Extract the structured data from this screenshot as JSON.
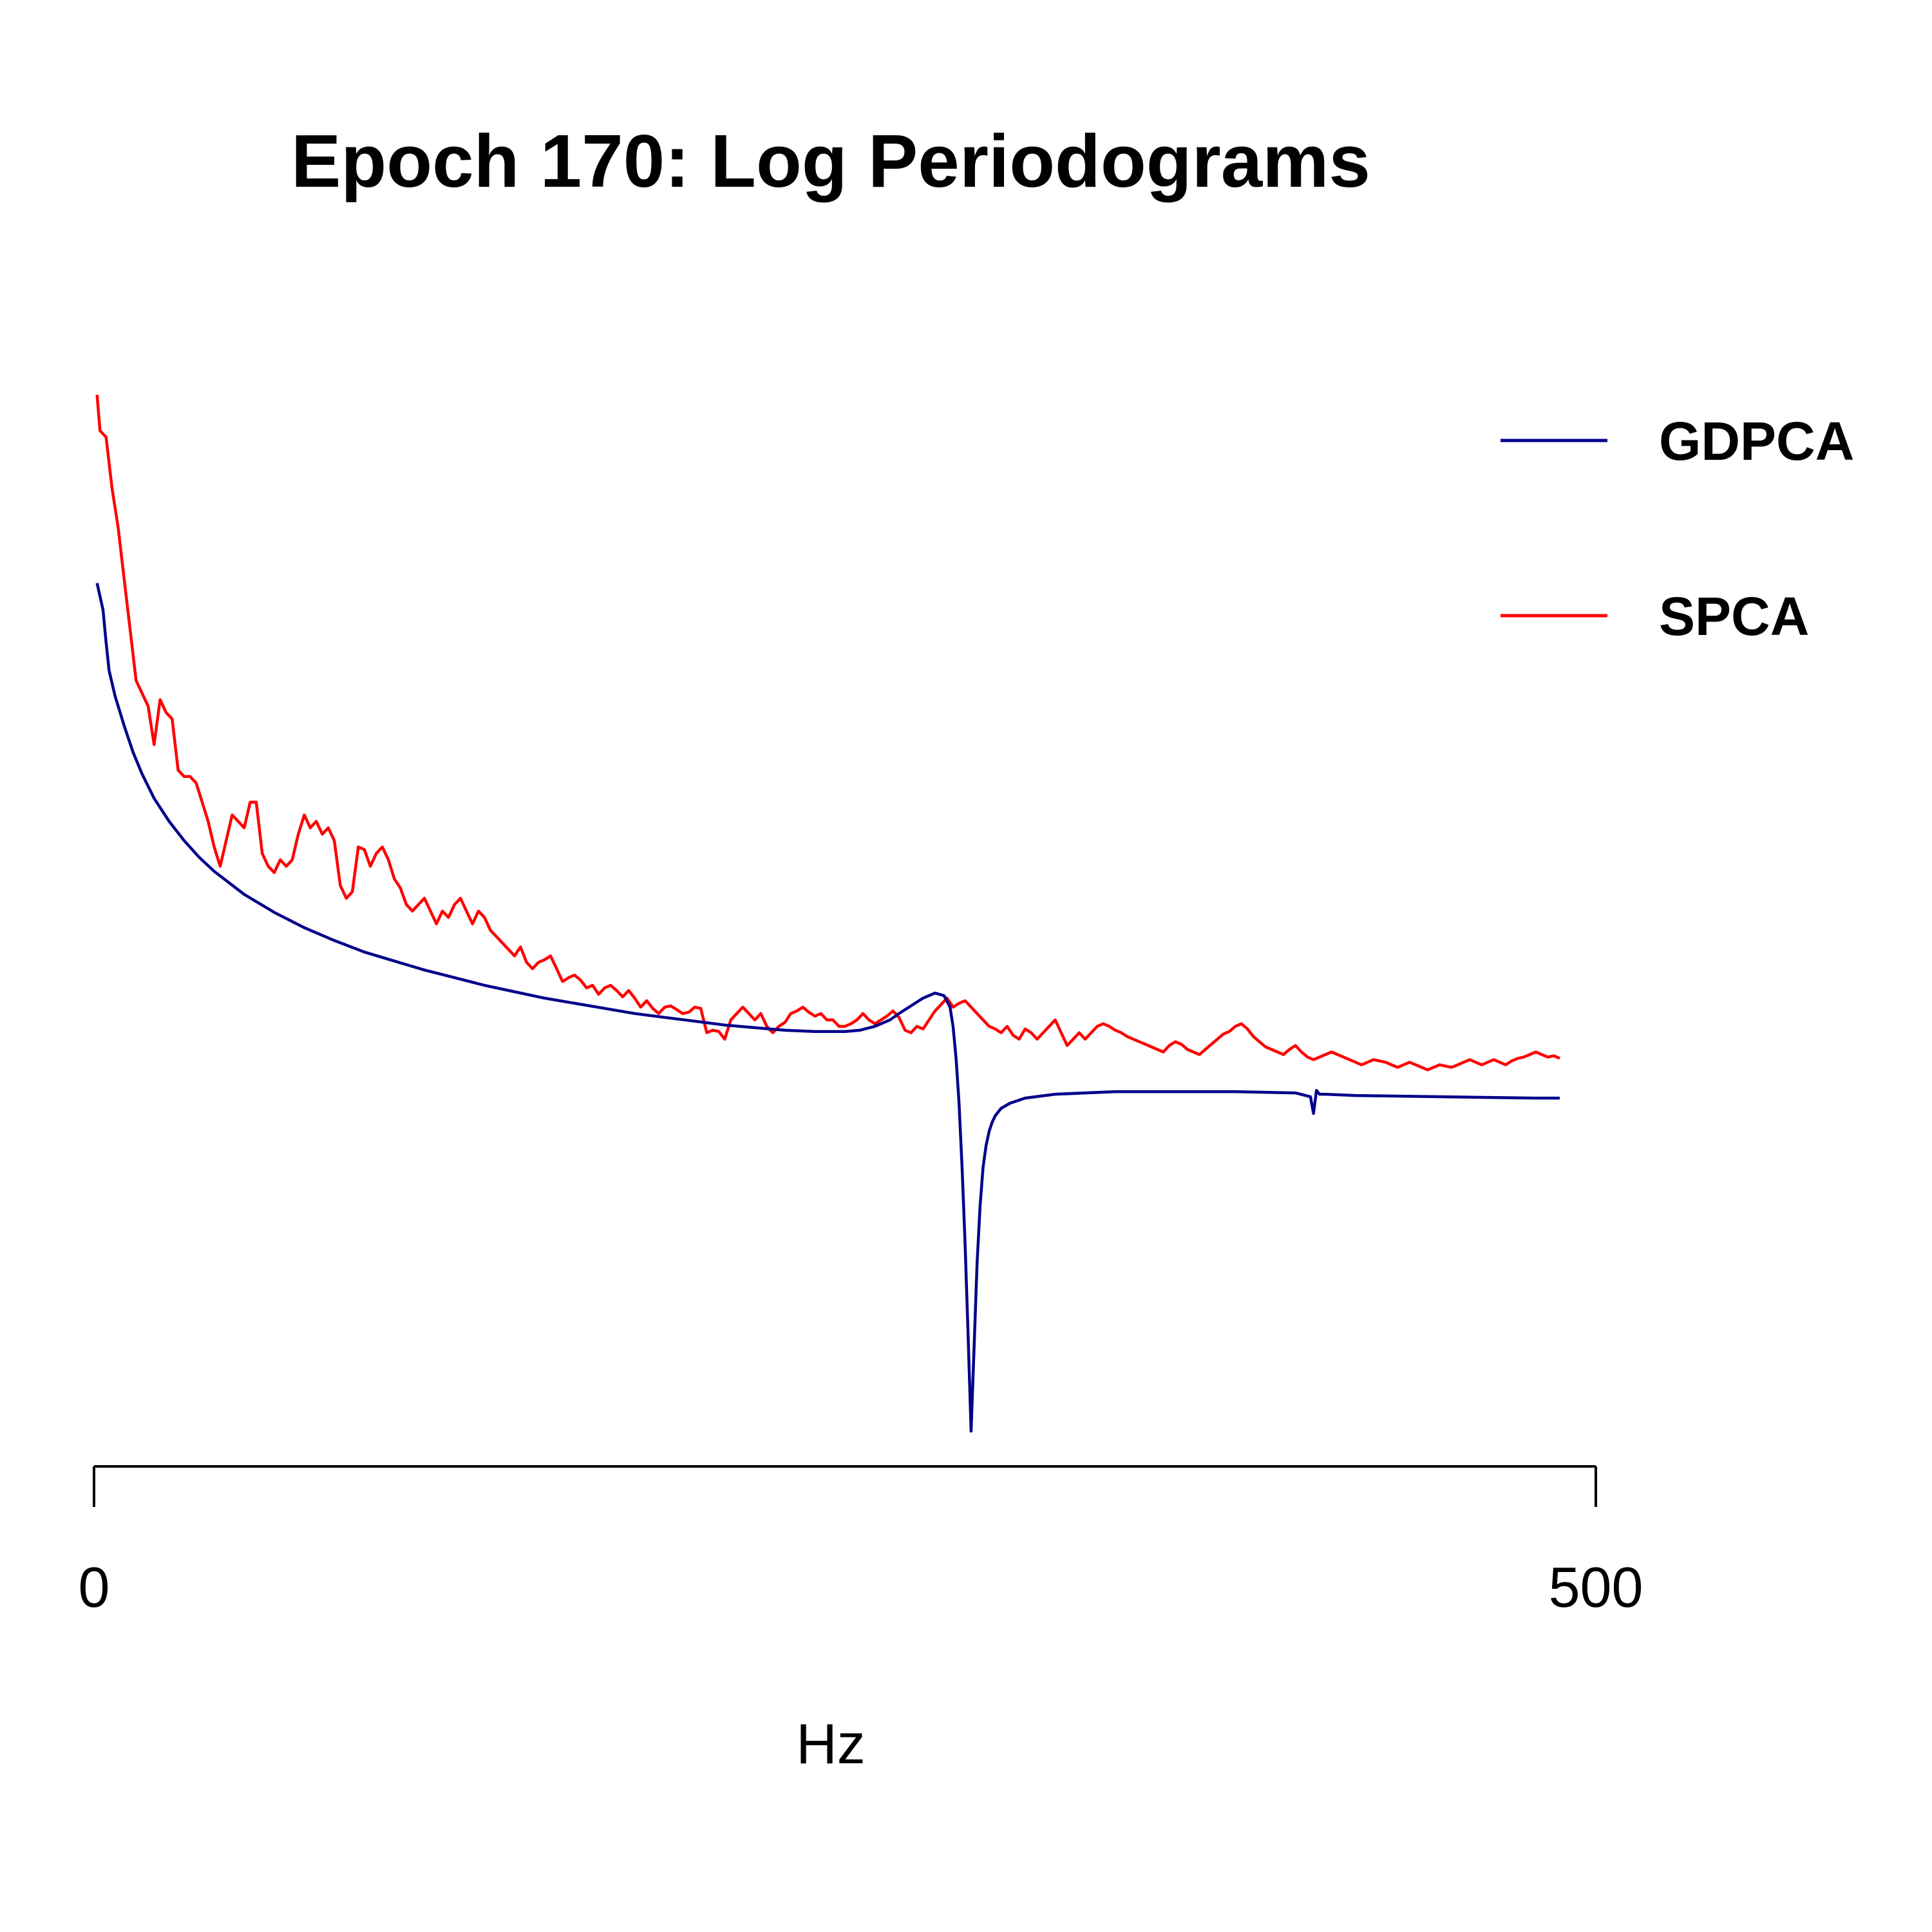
{
  "chart_data": {
    "type": "line",
    "title": "Epoch 170: Log Periodograms",
    "xlabel": "Hz",
    "ylabel": "",
    "xlim": [
      0,
      500
    ],
    "ylim": [
      -8.4,
      0.8
    ],
    "x_ticks": [
      "0",
      "500"
    ],
    "y_axis_shown": false,
    "grid": false,
    "legend_position": "top-right",
    "series": [
      {
        "name": "GDPCA",
        "color": "#00008b",
        "x": [
          1,
          3,
          4,
          5,
          7,
          10,
          13,
          16,
          20,
          25,
          30,
          35,
          40,
          50,
          60,
          70,
          80,
          90,
          100,
          110,
          120,
          130,
          140,
          150,
          160,
          170,
          180,
          190,
          200,
          210,
          220,
          230,
          240,
          250,
          255,
          260,
          265,
          268,
          272,
          276,
          280,
          283,
          285,
          286,
          287,
          288,
          289,
          290,
          291,
          292,
          293,
          294,
          295,
          296,
          297,
          298,
          299,
          300,
          302,
          305,
          310,
          320,
          340,
          360,
          380,
          400,
          405,
          406,
          407,
          408,
          410,
          420,
          450,
          480,
          488
        ],
        "y": [
          -1.54,
          -1.75,
          -2.0,
          -2.22,
          -2.42,
          -2.65,
          -2.86,
          -3.03,
          -3.22,
          -3.4,
          -3.55,
          -3.68,
          -3.79,
          -3.97,
          -4.11,
          -4.23,
          -4.33,
          -4.42,
          -4.49,
          -4.56,
          -4.62,
          -4.68,
          -4.73,
          -4.78,
          -4.82,
          -4.86,
          -4.9,
          -4.93,
          -4.96,
          -4.99,
          -5.01,
          -5.03,
          -5.04,
          -5.04,
          -5.03,
          -5.0,
          -4.95,
          -4.9,
          -4.84,
          -4.78,
          -4.74,
          -4.76,
          -4.85,
          -5.0,
          -5.25,
          -5.6,
          -6.1,
          -6.7,
          -7.4,
          -8.16,
          -7.5,
          -6.85,
          -6.4,
          -6.1,
          -5.93,
          -5.82,
          -5.75,
          -5.7,
          -5.64,
          -5.6,
          -5.56,
          -5.53,
          -5.51,
          -5.51,
          -5.51,
          -5.52,
          -5.55,
          -5.68,
          -5.5,
          -5.53,
          -5.53,
          -5.54,
          -5.55,
          -5.56,
          -5.56
        ]
      },
      {
        "name": "SPCA",
        "color": "#ff0000",
        "x": [
          1,
          2,
          4,
          6,
          8,
          10,
          12,
          14,
          16,
          18,
          20,
          22,
          24,
          26,
          28,
          30,
          32,
          34,
          36,
          38,
          40,
          42,
          44,
          46,
          48,
          50,
          52,
          54,
          56,
          58,
          60,
          62,
          64,
          66,
          68,
          70,
          72,
          74,
          76,
          78,
          80,
          82,
          84,
          86,
          88,
          90,
          92,
          94,
          96,
          98,
          100,
          102,
          104,
          106,
          108,
          110,
          112,
          114,
          116,
          118,
          120,
          122,
          124,
          126,
          128,
          130,
          132,
          134,
          136,
          138,
          140,
          142,
          144,
          146,
          148,
          150,
          152,
          154,
          156,
          158,
          160,
          162,
          164,
          166,
          168,
          170,
          172,
          174,
          176,
          178,
          180,
          182,
          184,
          186,
          188,
          190,
          192,
          194,
          196,
          198,
          200,
          202,
          204,
          206,
          208,
          210,
          212,
          214,
          216,
          218,
          220,
          222,
          224,
          226,
          228,
          230,
          232,
          234,
          236,
          238,
          240,
          242,
          244,
          246,
          248,
          250,
          252,
          254,
          256,
          258,
          260,
          262,
          264,
          266,
          268,
          270,
          272,
          274,
          276,
          278,
          280,
          282,
          284,
          286,
          288,
          290,
          292,
          294,
          296,
          298,
          300,
          302,
          304,
          306,
          308,
          310,
          312,
          314,
          316,
          318,
          320,
          322,
          324,
          326,
          328,
          330,
          332,
          334,
          336,
          338,
          340,
          342,
          344,
          346,
          348,
          350,
          352,
          354,
          356,
          358,
          360,
          362,
          364,
          366,
          368,
          370,
          372,
          374,
          376,
          378,
          380,
          382,
          384,
          386,
          388,
          390,
          392,
          394,
          396,
          398,
          400,
          402,
          404,
          406,
          408,
          410,
          412,
          414,
          416,
          418,
          420,
          422,
          424,
          426,
          428,
          430,
          432,
          434,
          436,
          438,
          440,
          442,
          444,
          446,
          448,
          450,
          452,
          454,
          456,
          458,
          460,
          462,
          464,
          466,
          468,
          470,
          472,
          474,
          476,
          478,
          480,
          482,
          484,
          486,
          488
        ],
        "y": [
          -0.07,
          -0.35,
          -0.4,
          -0.8,
          -1.1,
          -1.5,
          -1.9,
          -2.3,
          -2.4,
          -2.5,
          -2.8,
          -2.45,
          -2.55,
          -2.6,
          -3.0,
          -3.05,
          -3.05,
          -3.1,
          -3.25,
          -3.4,
          -3.6,
          -3.75,
          -3.55,
          -3.35,
          -3.4,
          -3.45,
          -3.25,
          -3.25,
          -3.65,
          -3.75,
          -3.8,
          -3.7,
          -3.75,
          -3.7,
          -3.5,
          -3.35,
          -3.45,
          -3.4,
          -3.5,
          -3.45,
          -3.55,
          -3.9,
          -4.0,
          -3.95,
          -3.6,
          -3.62,
          -3.75,
          -3.65,
          -3.6,
          -3.7,
          -3.85,
          -3.92,
          -4.05,
          -4.1,
          -4.05,
          -4.0,
          -4.1,
          -4.2,
          -4.1,
          -4.15,
          -4.05,
          -4.0,
          -4.1,
          -4.2,
          -4.1,
          -4.15,
          -4.25,
          -4.3,
          -4.35,
          -4.4,
          -4.45,
          -4.38,
          -4.5,
          -4.55,
          -4.5,
          -4.48,
          -4.45,
          -4.55,
          -4.65,
          -4.62,
          -4.6,
          -4.64,
          -4.7,
          -4.68,
          -4.75,
          -4.7,
          -4.68,
          -4.72,
          -4.77,
          -4.72,
          -4.78,
          -4.85,
          -4.8,
          -4.86,
          -4.9,
          -4.85,
          -4.84,
          -4.87,
          -4.9,
          -4.89,
          -4.85,
          -4.86,
          -5.05,
          -5.03,
          -5.04,
          -5.1,
          -4.95,
          -4.9,
          -4.85,
          -4.9,
          -4.95,
          -4.9,
          -5.0,
          -5.05,
          -5.0,
          -4.97,
          -4.9,
          -4.88,
          -4.85,
          -4.89,
          -4.92,
          -4.9,
          -4.95,
          -4.95,
          -5.0,
          -5.0,
          -4.98,
          -4.95,
          -4.9,
          -4.95,
          -4.98,
          -4.95,
          -4.92,
          -4.88,
          -4.93,
          -5.03,
          -5.05,
          -5.0,
          -5.02,
          -4.95,
          -4.88,
          -4.83,
          -4.78,
          -4.85,
          -4.82,
          -4.8,
          -4.85,
          -4.9,
          -4.95,
          -5.0,
          -5.02,
          -5.05,
          -5.0,
          -5.07,
          -5.1,
          -5.02,
          -5.05,
          -5.1,
          -5.05,
          -5.0,
          -4.95,
          -5.05,
          -5.15,
          -5.1,
          -5.05,
          -5.1,
          -5.05,
          -5.0,
          -4.98,
          -5.0,
          -5.03,
          -5.05,
          -5.08,
          -5.1,
          -5.12,
          -5.14,
          -5.16,
          -5.18,
          -5.2,
          -5.15,
          -5.12,
          -5.14,
          -5.18,
          -5.2,
          -5.22,
          -5.18,
          -5.14,
          -5.1,
          -5.06,
          -5.04,
          -5.0,
          -4.98,
          -5.02,
          -5.08,
          -5.12,
          -5.16,
          -5.18,
          -5.2,
          -5.22,
          -5.18,
          -5.15,
          -5.2,
          -5.24,
          -5.26,
          -5.24,
          -5.22,
          -5.2,
          -5.22,
          -5.24,
          -5.26,
          -5.28,
          -5.3,
          -5.28,
          -5.26,
          -5.27,
          -5.28,
          -5.3,
          -5.32,
          -5.3,
          -5.28,
          -5.3,
          -5.32,
          -5.34,
          -5.32,
          -5.3,
          -5.31,
          -5.32,
          -5.3,
          -5.28,
          -5.26,
          -5.28,
          -5.3,
          -5.28,
          -5.26,
          -5.28,
          -5.3,
          -5.27,
          -5.25,
          -5.24,
          -5.22,
          -5.2,
          -5.22,
          -5.24,
          -5.23,
          -5.25
        ]
      }
    ]
  }
}
